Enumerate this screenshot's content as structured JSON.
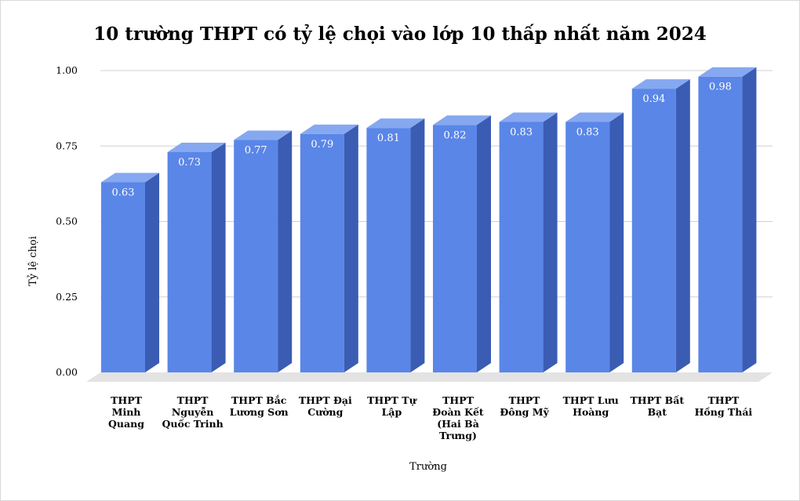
{
  "chart_data": {
    "type": "bar",
    "title": "10 trường THPT có tỷ lệ chọi vào lớp 10 thấp nhất năm 2024",
    "xlabel": "Trường",
    "ylabel": "Tỷ lệ chọi",
    "ylim": [
      0,
      1
    ],
    "yticks": [
      "0.00",
      "0.25",
      "0.50",
      "0.75",
      "1.00"
    ],
    "grid": true,
    "legend": "none",
    "style": "3d-bar",
    "colors": {
      "bar_front": "#5a86e8",
      "bar_side": "#3a5cb3",
      "bar_top": "#86a8f0",
      "floor": "#e3e3e3",
      "grid": "#d0d0d0"
    },
    "categories": [
      [
        "THPT",
        "Minh",
        "Quang"
      ],
      [
        "THPT",
        "Nguyễn",
        "Quốc Trinh"
      ],
      [
        "THPT Bắc",
        "Lương Sơn"
      ],
      [
        "THPT Đại",
        "Cường"
      ],
      [
        "THPT Tự",
        "Lập"
      ],
      [
        "THPT",
        "Đoàn Kết",
        "(Hai Bà",
        "Trưng)"
      ],
      [
        "THPT",
        "Đông Mỹ"
      ],
      [
        "THPT Lưu",
        "Hoàng"
      ],
      [
        "THPT Bất",
        "Bạt"
      ],
      [
        "THPT",
        "Hồng Thái"
      ]
    ],
    "values": [
      0.63,
      0.73,
      0.77,
      0.79,
      0.81,
      0.82,
      0.83,
      0.83,
      0.94,
      0.98
    ],
    "data_labels": [
      "0.63",
      "0.73",
      "0.77",
      "0.79",
      "0.81",
      "0.82",
      "0.83",
      "0.83",
      "0.94",
      "0.98"
    ]
  }
}
